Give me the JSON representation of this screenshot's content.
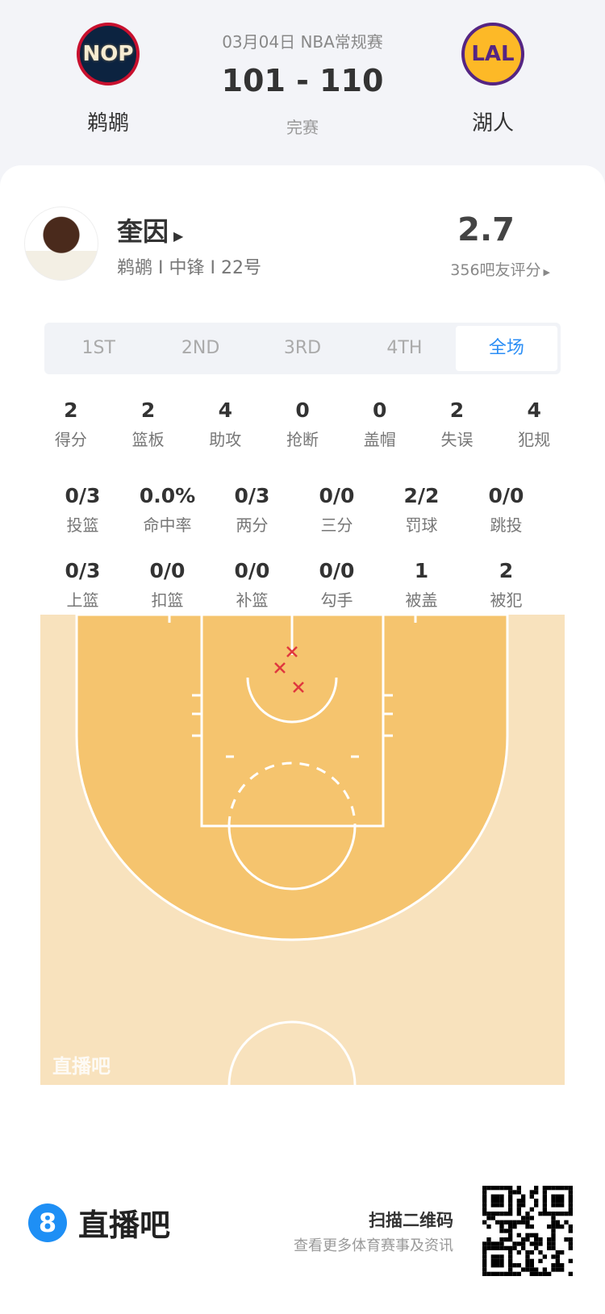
{
  "header": {
    "date_league": "03月04日 NBA常规赛",
    "score": "101 - 110",
    "status": "完赛",
    "home": {
      "name": "鹈鹕",
      "abbr": "NOP",
      "color": "#0c2340"
    },
    "away": {
      "name": "湖人",
      "abbr": "LAL",
      "color": "#fdb927"
    }
  },
  "player": {
    "name": "奎因",
    "info": "鹈鹕 I 中锋 I 22号",
    "rating": "2.7",
    "rating_label": "356吧友评分"
  },
  "tabs": [
    {
      "label": "1ST"
    },
    {
      "label": "2ND"
    },
    {
      "label": "3RD"
    },
    {
      "label": "4TH"
    },
    {
      "label": "全场",
      "active": true
    }
  ],
  "stats_row1": [
    {
      "v": "2",
      "l": "得分"
    },
    {
      "v": "2",
      "l": "篮板"
    },
    {
      "v": "4",
      "l": "助攻"
    },
    {
      "v": "0",
      "l": "抢断"
    },
    {
      "v": "0",
      "l": "盖帽"
    },
    {
      "v": "2",
      "l": "失误"
    },
    {
      "v": "4",
      "l": "犯规"
    }
  ],
  "stats_row2": [
    {
      "v": "0/3",
      "l": "投篮"
    },
    {
      "v": "0.0%",
      "l": "命中率"
    },
    {
      "v": "0/3",
      "l": "两分"
    },
    {
      "v": "0/0",
      "l": "三分"
    },
    {
      "v": "2/2",
      "l": "罚球"
    },
    {
      "v": "0/0",
      "l": "跳投"
    }
  ],
  "stats_row3": [
    {
      "v": "0/3",
      "l": "上篮"
    },
    {
      "v": "0/0",
      "l": "扣篮"
    },
    {
      "v": "0/0",
      "l": "补篮"
    },
    {
      "v": "0/0",
      "l": "勾手"
    },
    {
      "v": "1",
      "l": "被盖"
    },
    {
      "v": "2",
      "l": "被犯"
    }
  ],
  "court": {
    "watermark": "直播吧",
    "missed_shots": 3,
    "miss_color": "#e0383e"
  },
  "footer": {
    "brand": "直播吧",
    "qr_title": "扫描二维码",
    "qr_sub": "查看更多体育赛事及资讯",
    "accent": "#1e8ff5"
  }
}
